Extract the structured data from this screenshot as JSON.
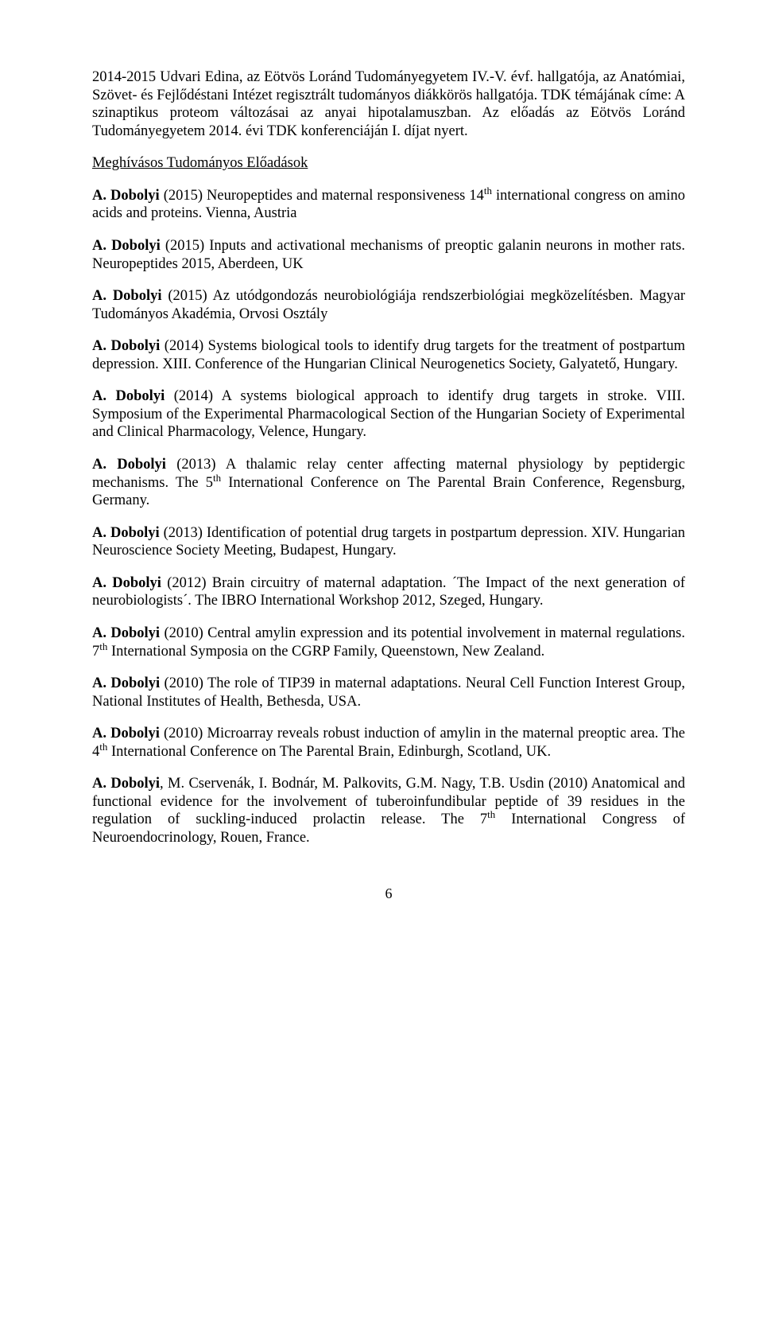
{
  "intro1": "2014-2015   Udvari Edina, az Eötvös Loránd Tudományegyetem IV.-V. évf. hallgatója, az Anatómiai, Szövet- és Fejlődéstani Intézet regisztrált tudományos diákkörös hallgatója. TDK témájának címe: A szinaptikus proteom változásai az anyai hipotalamuszban. Az előadás az Eötvös Loránd Tudományegyetem 2014. évi TDK konferenciáján I. díjat nyert.",
  "sectionTitle": "Meghívásos Tudományos Előadások",
  "p1": {
    "b": "A. Dobolyi",
    "t": " (2015) Neuropeptides and maternal responsiveness 14",
    "sup": "th",
    "t2": " international congress on amino acids and proteins. Vienna, Austria"
  },
  "p2": {
    "b": "A. Dobolyi",
    "t": " (2015) Inputs and activational mechanisms of preoptic galanin neurons in mother rats. Neuropeptides 2015, Aberdeen, UK"
  },
  "p3": {
    "b": "A. Dobolyi",
    "t": " (2015) Az utódgondozás neurobiológiája rendszerbiológiai megközelítésben. Magyar Tudományos Akadémia, Orvosi Osztály"
  },
  "p4": {
    "b": "A. Dobolyi",
    "t": " (2014) Systems biological tools to identify drug targets for the treatment of postpartum depression. XIII. Conference of the Hungarian Clinical Neurogenetics Society, Galyatető, Hungary."
  },
  "p5": {
    "b": "A. Dobolyi",
    "t": " (2014) A systems biological approach to identify drug targets in stroke. VIII. Symposium of the Experimental Pharmacological Section of the  Hungarian Society of Experimental and Clinical Pharmacology, Velence, Hungary."
  },
  "p6": {
    "b": "A. Dobolyi",
    "t": " (2013) A thalamic relay center affecting maternal physiology by peptidergic mechanisms. The 5",
    "sup": "th",
    "t2": " International Conference on The Parental Brain Conference, Regensburg, Germany."
  },
  "p7": {
    "b": "A. Dobolyi",
    "t": " (2013) Identification of potential drug targets in postpartum depression. XIV. Hungarian Neuroscience Society Meeting, Budapest, Hungary."
  },
  "p8": {
    "b": "A. Dobolyi",
    "t": " (2012) Brain circuitry of maternal adaptation. ´The Impact of the next generation of neurobiologists´. The IBRO International Workshop 2012, Szeged, Hungary."
  },
  "p9": {
    "b": "A. Dobolyi",
    "t": " (2010) Central amylin expression and its potential involvement in maternal regulations. 7",
    "sup": "th",
    "t2": " International Symposia on the CGRP Family, Queenstown, New Zealand."
  },
  "p10": {
    "b": "A. Dobolyi",
    "t": " (2010) The role of TIP39 in maternal adaptations. Neural Cell Function Interest Group, National Institutes of Health, Bethesda, USA."
  },
  "p11": {
    "b": "A. Dobolyi",
    "t": " (2010) Microarray reveals robust induction of amylin in the maternal preoptic area. The 4",
    "sup": "th",
    "t2": " International Conference on The Parental Brain, Edinburgh, Scotland, UK."
  },
  "p12": {
    "b": "A. Dobolyi",
    "t": ", M. Cservenák, I. Bodnár, M. Palkovits, G.M. Nagy, T.B. Usdin (2010) Anatomical and functional evidence for the involvement of tuberoinfundibular peptide of 39 residues in the regulation of suckling-induced prolactin release. The 7",
    "sup": "th",
    "t2": " International Congress of Neuroendocrinology, Rouen, France."
  },
  "pagenum": "6"
}
